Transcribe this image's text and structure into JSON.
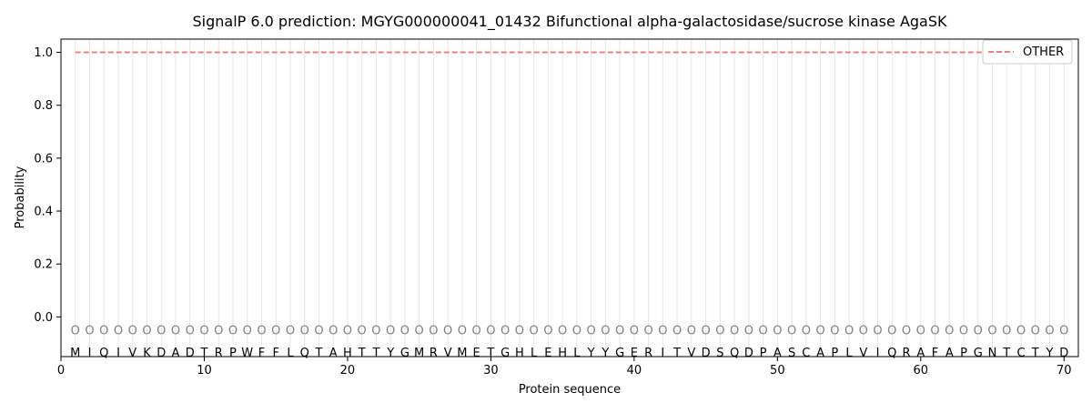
{
  "chart_data": {
    "type": "line",
    "title": "SignalP 6.0 prediction: MGYG000000041_01432 Bifunctional alpha-galactosidase/sucrose kinase AgaSK",
    "xlabel": "Protein sequence",
    "ylabel": "Probability",
    "xlim": [
      0,
      71
    ],
    "ylim": [
      -0.15,
      1.05
    ],
    "x_ticks": [
      0,
      10,
      20,
      30,
      40,
      50,
      60,
      70
    ],
    "y_ticks": [
      0.0,
      0.2,
      0.4,
      0.6,
      0.8,
      1.0
    ],
    "x_tick_labels": [
      "0",
      "10",
      "20",
      "30",
      "40",
      "50",
      "60",
      "70"
    ],
    "y_tick_labels": [
      "0.0",
      "0.2",
      "0.4",
      "0.6",
      "0.8",
      "1.0"
    ],
    "grid": "vertical lines at each residue",
    "legend_position": "top-right",
    "sequence": [
      "M",
      "I",
      "Q",
      "I",
      "V",
      "K",
      "D",
      "A",
      "D",
      "T",
      "R",
      "P",
      "W",
      "F",
      "F",
      "L",
      "Q",
      "T",
      "A",
      "H",
      "T",
      "T",
      "Y",
      "G",
      "M",
      "R",
      "V",
      "M",
      "E",
      "T",
      "G",
      "H",
      "L",
      "E",
      "H",
      "L",
      "Y",
      "Y",
      "G",
      "E",
      "R",
      "I",
      "T",
      "V",
      "D",
      "S",
      "Q",
      "D",
      "P",
      "A",
      "S",
      "C",
      "A",
      "P",
      "L",
      "V",
      "I",
      "Q",
      "R",
      "A",
      "F",
      "A",
      "P",
      "G",
      "N",
      "T",
      "C",
      "T",
      "Y",
      "D"
    ],
    "predicted_labels": [
      "O",
      "O",
      "O",
      "O",
      "O",
      "O",
      "O",
      "O",
      "O",
      "O",
      "O",
      "O",
      "O",
      "O",
      "O",
      "O",
      "O",
      "O",
      "O",
      "O",
      "O",
      "O",
      "O",
      "O",
      "O",
      "O",
      "O",
      "O",
      "O",
      "O",
      "O",
      "O",
      "O",
      "O",
      "O",
      "O",
      "O",
      "O",
      "O",
      "O",
      "O",
      "O",
      "O",
      "O",
      "O",
      "O",
      "O",
      "O",
      "O",
      "O",
      "O",
      "O",
      "O",
      "O",
      "O",
      "O",
      "O",
      "O",
      "O",
      "O",
      "O",
      "O",
      "O",
      "O",
      "O",
      "O",
      "O",
      "O",
      "O",
      "O"
    ],
    "series": [
      {
        "name": "OTHER",
        "color": "#f08080",
        "style": "dashed",
        "x_start": 1,
        "x_end": 70,
        "value": 1.0
      }
    ]
  }
}
